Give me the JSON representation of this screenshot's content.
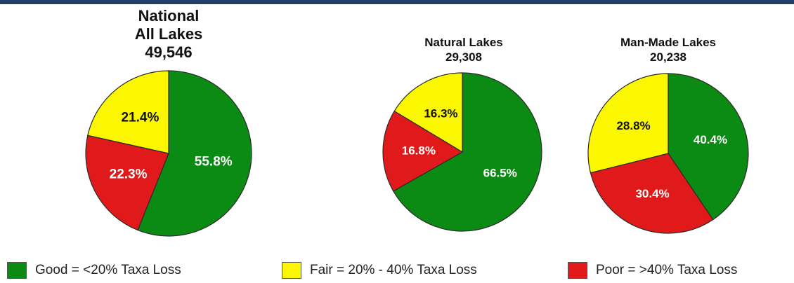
{
  "colors": {
    "good": "#0b8a14",
    "fair": "#fbf700",
    "poor": "#e01a1a",
    "header": "#24406a"
  },
  "chart_data": [
    {
      "type": "pie",
      "title": [
        "National",
        "All Lakes",
        "49,546"
      ],
      "slices": [
        {
          "category": "good",
          "value": 55.8,
          "label": "55.8%"
        },
        {
          "category": "poor",
          "value": 22.3,
          "label": "22.3%"
        },
        {
          "category": "fair",
          "value": 21.4,
          "label": "21.4%"
        }
      ]
    },
    {
      "type": "pie",
      "title": [
        "Natural Lakes",
        "29,308"
      ],
      "slices": [
        {
          "category": "good",
          "value": 66.5,
          "label": "66.5%"
        },
        {
          "category": "poor",
          "value": 16.8,
          "label": "16.8%"
        },
        {
          "category": "fair",
          "value": 16.3,
          "label": "16.3%"
        }
      ]
    },
    {
      "type": "pie",
      "title": [
        "Man-Made Lakes",
        "20,238"
      ],
      "slices": [
        {
          "category": "good",
          "value": 40.4,
          "label": "40.4%"
        },
        {
          "category": "poor",
          "value": 30.4,
          "label": "30.4%"
        },
        {
          "category": "fair",
          "value": 28.8,
          "label": "28.8%"
        }
      ]
    }
  ],
  "legend": [
    {
      "category": "good",
      "label": "Good =  <20% Taxa Loss"
    },
    {
      "category": "fair",
      "label": "Fair = 20% - 40% Taxa Loss"
    },
    {
      "category": "poor",
      "label": "Poor =  >40% Taxa Loss"
    }
  ]
}
